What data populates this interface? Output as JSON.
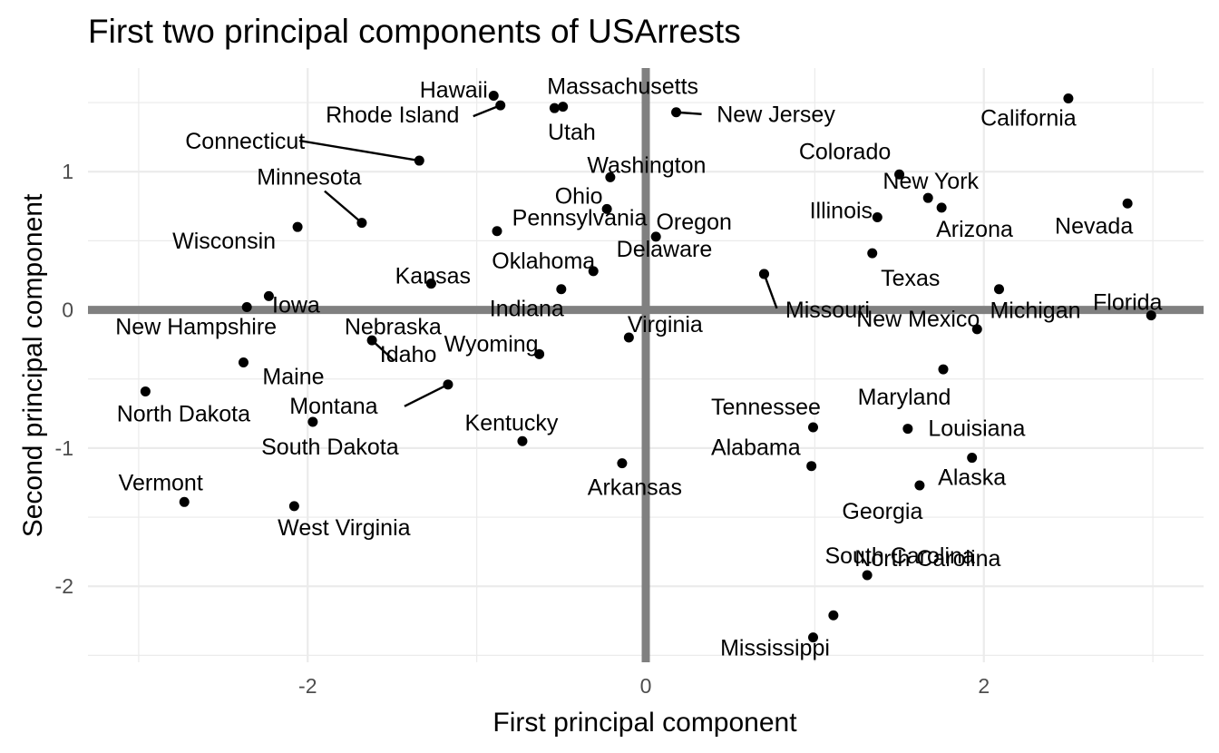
{
  "chart_data": {
    "type": "scatter",
    "title": "First two principal components of USArrests",
    "xlabel": "First principal component",
    "ylabel": "Second principal component",
    "xlim": [
      -3.3,
      3.3
    ],
    "ylim": [
      -2.55,
      1.75
    ],
    "x_ticks": [
      -2,
      0,
      2
    ],
    "y_ticks": [
      -2,
      -1,
      0,
      1
    ],
    "x_tick_labels": [
      "-2",
      "0",
      "2"
    ],
    "y_tick_labels": [
      "-2",
      "-1",
      "0",
      "1"
    ],
    "grid": true,
    "reference_lines": {
      "x": 0,
      "y": 0
    },
    "colors": {
      "points": "#000000",
      "grid": "#ebebeb",
      "reference": "#808080",
      "ticks": "#4d4d4d"
    },
    "points": [
      {
        "label": "Alabama",
        "x": 0.98,
        "y": -1.13
      },
      {
        "label": "Alaska",
        "x": 1.93,
        "y": -1.07
      },
      {
        "label": "Arizona",
        "x": 1.75,
        "y": 0.74
      },
      {
        "label": "Arkansas",
        "x": -0.14,
        "y": -1.11
      },
      {
        "label": "California",
        "x": 2.5,
        "y": 1.53
      },
      {
        "label": "Colorado",
        "x": 1.5,
        "y": 0.98
      },
      {
        "label": "Connecticut",
        "x": -1.34,
        "y": 1.08
      },
      {
        "label": "Delaware",
        "x": 0.7,
        "y": 0.26
      },
      {
        "label": "Florida",
        "x": 2.99,
        "y": -0.04
      },
      {
        "label": "Georgia",
        "x": 1.62,
        "y": -1.27
      },
      {
        "label": "Hawaii",
        "x": -0.9,
        "y": 1.55
      },
      {
        "label": "Idaho",
        "x": -1.62,
        "y": -0.22
      },
      {
        "label": "Illinois",
        "x": 1.37,
        "y": 0.67
      },
      {
        "label": "Indiana",
        "x": -0.5,
        "y": 0.15
      },
      {
        "label": "Iowa",
        "x": -2.23,
        "y": 0.1
      },
      {
        "label": "Kansas",
        "x": -1.27,
        "y": 0.19
      },
      {
        "label": "Kentucky",
        "x": -0.73,
        "y": -0.95
      },
      {
        "label": "Louisiana",
        "x": 1.55,
        "y": -0.86
      },
      {
        "label": "Maine",
        "x": -2.38,
        "y": -0.38
      },
      {
        "label": "Maryland",
        "x": 1.76,
        "y": -0.43
      },
      {
        "label": "Massachusetts",
        "x": -0.49,
        "y": 1.47
      },
      {
        "label": "Michigan",
        "x": 2.09,
        "y": 0.15
      },
      {
        "label": "Minnesota",
        "x": -1.68,
        "y": 0.63
      },
      {
        "label": "Mississippi",
        "x": 0.99,
        "y": -2.37
      },
      {
        "label": "Missouri",
        "x": 0.7,
        "y": 0.26
      },
      {
        "label": "Montana",
        "x": -1.17,
        "y": -0.54
      },
      {
        "label": "Nebraska",
        "x": -1.27,
        "y": 0.19
      },
      {
        "label": "Nevada",
        "x": 2.85,
        "y": 0.77
      },
      {
        "label": "New Hampshire",
        "x": -2.36,
        "y": 0.02
      },
      {
        "label": "New Jersey",
        "x": 0.18,
        "y": 1.43
      },
      {
        "label": "New Mexico",
        "x": 1.96,
        "y": -0.14
      },
      {
        "label": "New York",
        "x": 1.67,
        "y": 0.81
      },
      {
        "label": "North Carolina",
        "x": 1.11,
        "y": -2.21
      },
      {
        "label": "North Dakota",
        "x": -2.96,
        "y": -0.59
      },
      {
        "label": "Ohio",
        "x": -0.23,
        "y": 0.73
      },
      {
        "label": "Oklahoma",
        "x": -0.31,
        "y": 0.28
      },
      {
        "label": "Oregon",
        "x": 0.06,
        "y": 0.53
      },
      {
        "label": "Pennsylvania",
        "x": -0.88,
        "y": 0.57
      },
      {
        "label": "Rhode Island",
        "x": -0.86,
        "y": 1.48
      },
      {
        "label": "South Carolina",
        "x": 1.31,
        "y": -1.92
      },
      {
        "label": "South Dakota",
        "x": -1.97,
        "y": -0.81
      },
      {
        "label": "Tennessee",
        "x": 0.99,
        "y": -0.85
      },
      {
        "label": "Texas",
        "x": 1.34,
        "y": 0.41
      },
      {
        "label": "Utah",
        "x": -0.54,
        "y": 1.46
      },
      {
        "label": "Vermont",
        "x": -2.73,
        "y": -1.39
      },
      {
        "label": "Virginia",
        "x": -0.1,
        "y": -0.2
      },
      {
        "label": "Washington",
        "x": -0.21,
        "y": 0.96
      },
      {
        "label": "West Virginia",
        "x": -2.08,
        "y": -1.42
      },
      {
        "label": "Wisconsin",
        "x": -2.06,
        "y": 0.6
      },
      {
        "label": "Wyoming",
        "x": -0.63,
        "y": -0.32
      }
    ]
  }
}
